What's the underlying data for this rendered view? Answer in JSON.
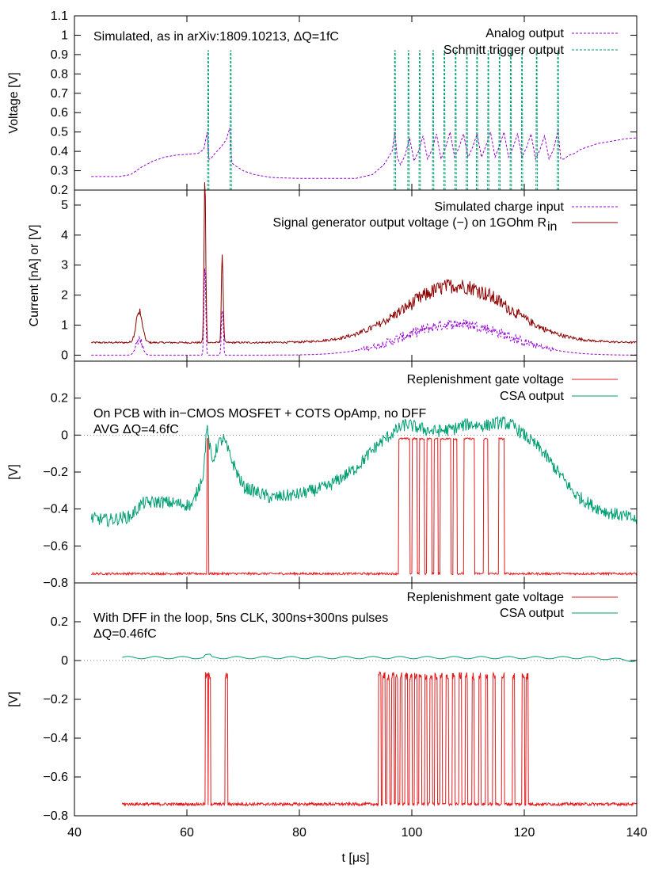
{
  "colors": {
    "analog": "#9400d3",
    "schmitt": "#009e73",
    "charge": "#9400d3",
    "siggen": "#8b0000",
    "gate": "#e41a1c",
    "csa": "#009e73",
    "zero_line": "#888888"
  },
  "chart_data": [
    {
      "type": "line",
      "panel": "simulated",
      "xlabel": "",
      "ylabel": "Voltage [V]",
      "xlim": [
        40,
        140
      ],
      "ylim": [
        0.2,
        1.1
      ],
      "yticks": [
        "0.2",
        "0.3",
        "0.4",
        "0.5",
        "0.6",
        "0.7",
        "0.8",
        "0.9",
        "1",
        "1.1"
      ],
      "annotations": [
        "Simulated, as in arXiv:1809.10213, ΔQ=1fC"
      ],
      "legend_position": "top-right",
      "series": [
        {
          "name": "Analog output",
          "style": "dashed",
          "x": [
            43,
            48,
            50,
            52,
            54,
            56,
            58,
            60,
            62,
            63,
            63.6,
            63.9,
            64.2,
            65,
            66,
            67,
            67.6,
            68,
            68.4,
            70,
            72,
            75,
            80,
            85,
            90,
            93,
            95,
            96.5,
            97,
            97.4,
            98,
            98.8,
            99.6,
            100.4,
            101.2,
            102,
            102.8,
            103.6,
            104.4,
            105.2,
            106,
            106.8,
            107.6,
            108.4,
            109.2,
            110,
            110.8,
            111.6,
            112.4,
            113.2,
            114,
            114.8,
            115.6,
            116.4,
            117.2,
            118,
            118.8,
            119.6,
            120.4,
            121.2,
            122,
            122.8,
            123.6,
            124.4,
            125.2,
            126,
            126.5,
            127,
            128,
            129,
            130,
            131,
            132,
            133,
            134,
            136,
            138,
            140
          ],
          "y": [
            0.27,
            0.27,
            0.28,
            0.32,
            0.35,
            0.37,
            0.38,
            0.385,
            0.39,
            0.41,
            0.5,
            0.36,
            0.36,
            0.39,
            0.42,
            0.46,
            0.52,
            0.34,
            0.33,
            0.3,
            0.28,
            0.265,
            0.26,
            0.26,
            0.26,
            0.28,
            0.33,
            0.4,
            0.5,
            0.37,
            0.33,
            0.38,
            0.47,
            0.35,
            0.4,
            0.48,
            0.36,
            0.41,
            0.49,
            0.36,
            0.42,
            0.5,
            0.37,
            0.42,
            0.49,
            0.37,
            0.42,
            0.49,
            0.37,
            0.43,
            0.5,
            0.37,
            0.43,
            0.5,
            0.37,
            0.42,
            0.49,
            0.37,
            0.42,
            0.49,
            0.36,
            0.41,
            0.48,
            0.36,
            0.41,
            0.51,
            0.36,
            0.36,
            0.38,
            0.39,
            0.41,
            0.42,
            0.43,
            0.44,
            0.445,
            0.455,
            0.465,
            0.47
          ]
        },
        {
          "name": "Schmitt trigger output",
          "style": "dashed",
          "baseline": 0.2,
          "pulse_level": 0.92,
          "pulses": [
            63.8,
            67.8,
            97.0,
            99.4,
            101.4,
            103.8,
            105.8,
            107.8,
            109.8,
            111.6,
            113.6,
            115.6,
            117.6,
            119.6,
            122.2,
            126.0
          ]
        }
      ]
    },
    {
      "type": "line",
      "panel": "input",
      "xlabel": "",
      "ylabel": "Current [nA] or [V]",
      "xlim": [
        40,
        140
      ],
      "ylim": [
        -0.2,
        5.5
      ],
      "yticks": [
        "0",
        "1",
        "2",
        "3",
        "4",
        "5"
      ],
      "legend_position": "top-right",
      "series": [
        {
          "name": "Simulated charge input",
          "style": "dashed"
        },
        {
          "name": "Signal generator output voltage (−) on 1GOhm R",
          "subscript": "in",
          "style": "solid"
        }
      ],
      "bumps": [
        {
          "center": 51.5,
          "width": 0.8,
          "height": 1.0
        },
        {
          "center": 63.2,
          "width": 0.22,
          "height": 5.4
        },
        {
          "center": 66.3,
          "width": 0.22,
          "height": 3.0
        },
        {
          "center": 108,
          "width": 13,
          "height": 1.9
        }
      ],
      "baseline": 0.42
    },
    {
      "type": "line",
      "panel": "pcb",
      "xlabel": "",
      "ylabel": "[V]",
      "xlim": [
        40,
        140
      ],
      "ylim": [
        -0.8,
        0.4
      ],
      "yticks": [
        "−0.8",
        "−0.6",
        "−0.4",
        "−0.2",
        "0",
        "0.2"
      ],
      "annotations": [
        "On PCB with in−CMOS MOSFET + COTS OpAmp, no DFF",
        "AVG ΔQ=4.6fC"
      ],
      "legend_position": "top-right",
      "series": [
        {
          "name": "Replenishment gate voltage",
          "style": "solid",
          "baseline": -0.75,
          "high": -0.02,
          "windows": [
            [
              63.6,
              63.9
            ],
            [
              97.6,
              99.6
            ],
            [
              100.0,
              100.9
            ],
            [
              101.3,
              102.2
            ],
            [
              102.6,
              103.5
            ],
            [
              103.9,
              104.6
            ],
            [
              105.0,
              106.9
            ],
            [
              107.3,
              108.0
            ],
            [
              109.2,
              111.1
            ],
            [
              112.7,
              113.5
            ],
            [
              115.4,
              116.4
            ]
          ]
        },
        {
          "name": "CSA output",
          "style": "solid",
          "x": [
            43,
            46,
            50,
            52,
            55,
            58,
            61,
            63,
            63.5,
            64.5,
            65.5,
            66.5,
            67.5,
            70,
            75,
            80,
            85,
            90,
            94,
            97,
            99,
            101,
            104,
            107,
            110,
            113,
            116,
            118,
            120,
            123,
            126,
            129,
            132,
            135,
            138,
            140
          ],
          "y": [
            -0.45,
            -0.46,
            -0.44,
            -0.37,
            -0.36,
            -0.37,
            -0.38,
            -0.2,
            0.05,
            -0.15,
            -0.05,
            -0.02,
            -0.1,
            -0.28,
            -0.34,
            -0.32,
            -0.28,
            -0.18,
            -0.05,
            0.02,
            0.06,
            0.04,
            0.02,
            0.03,
            0.06,
            0.05,
            0.07,
            0.05,
            0.0,
            -0.08,
            -0.2,
            -0.32,
            -0.38,
            -0.42,
            -0.44,
            -0.46
          ]
        }
      ]
    },
    {
      "type": "line",
      "panel": "dff",
      "xlabel": "t [μs]",
      "ylabel": "[V]",
      "xlim": [
        40,
        140
      ],
      "ylim": [
        -0.8,
        0.4
      ],
      "xticks": [
        "40",
        "60",
        "80",
        "100",
        "120",
        "140"
      ],
      "yticks": [
        "−0.8",
        "−0.6",
        "−0.4",
        "−0.2",
        "0",
        "0.2"
      ],
      "annotations": [
        "With DFF in the loop, 5ns CLK, 300ns+300ns pulses",
        "ΔQ=0.46fC"
      ],
      "legend_position": "top-right",
      "series": [
        {
          "name": "Replenishment gate voltage",
          "style": "solid",
          "baseline": -0.74,
          "high": -0.08,
          "pulses": [
            63.5,
            64.0,
            67.0,
            94.3,
            95.0,
            95.8,
            96.6,
            97.3,
            98.1,
            99.0,
            99.8,
            100.7,
            101.5,
            102.5,
            103.4,
            104.3,
            105.2,
            106.3,
            107.4,
            108.6,
            109.7,
            110.9,
            112.1,
            113.3,
            114.6,
            116.2,
            118.1,
            119.8,
            120.5
          ]
        },
        {
          "name": "CSA output",
          "style": "solid",
          "level": 0.015
        }
      ]
    }
  ]
}
